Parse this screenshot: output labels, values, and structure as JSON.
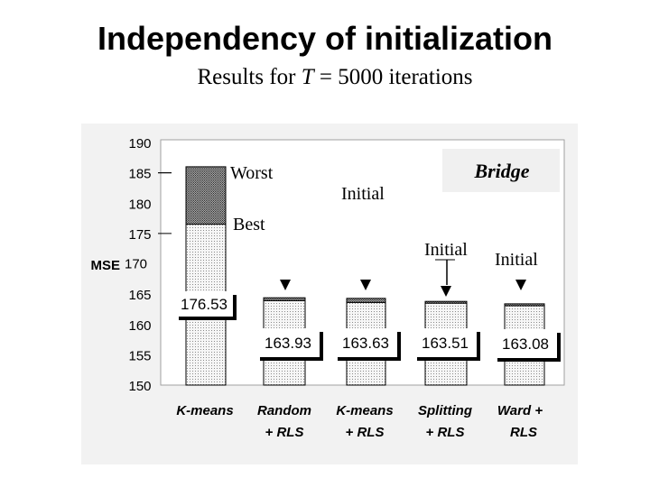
{
  "title": "Independency of initialization",
  "subtitle": {
    "prefix": "Results for ",
    "variable": "T",
    "suffix": " = 5000 iterations"
  },
  "chart_data": {
    "type": "bar",
    "title": "Bridge",
    "ylabel": "MSE",
    "ylim": [
      150,
      190
    ],
    "yticks": [
      "190",
      "185",
      "180",
      "175",
      "170",
      "165",
      "160",
      "155",
      "150"
    ],
    "ytick_values": [
      190,
      185,
      180,
      175,
      170,
      165,
      160,
      155,
      150
    ],
    "categories": [
      {
        "line1": "K-means",
        "line2": ""
      },
      {
        "line1": "Random",
        "line2": "+ RLS"
      },
      {
        "line1": "K-means",
        "line2": "+   RLS"
      },
      {
        "line1": "Splitting",
        "line2": "+ RLS"
      },
      {
        "line1": "Ward +",
        "line2": "RLS"
      }
    ],
    "series": [
      {
        "name": "Best",
        "values": [
          176.53,
          163.93,
          163.63,
          163.51,
          163.08
        ]
      },
      {
        "name": "Worst",
        "values": [
          186.0,
          164.4,
          164.3,
          163.8,
          163.4
        ]
      }
    ],
    "value_labels": [
      "176.53",
      "163.93",
      "163.63",
      "163.51",
      "163.08"
    ],
    "annotations": {
      "worst": "Worst",
      "best": "Best",
      "initial_1": "Initial",
      "initial_2": "Initial",
      "initial_3": "Initial"
    },
    "colors": {
      "best_fill": "#f4f4f4",
      "worst_fill": "#9a9a9a",
      "panel_bg": "#ffffff",
      "outer_bg": "#f2f2f2"
    }
  }
}
